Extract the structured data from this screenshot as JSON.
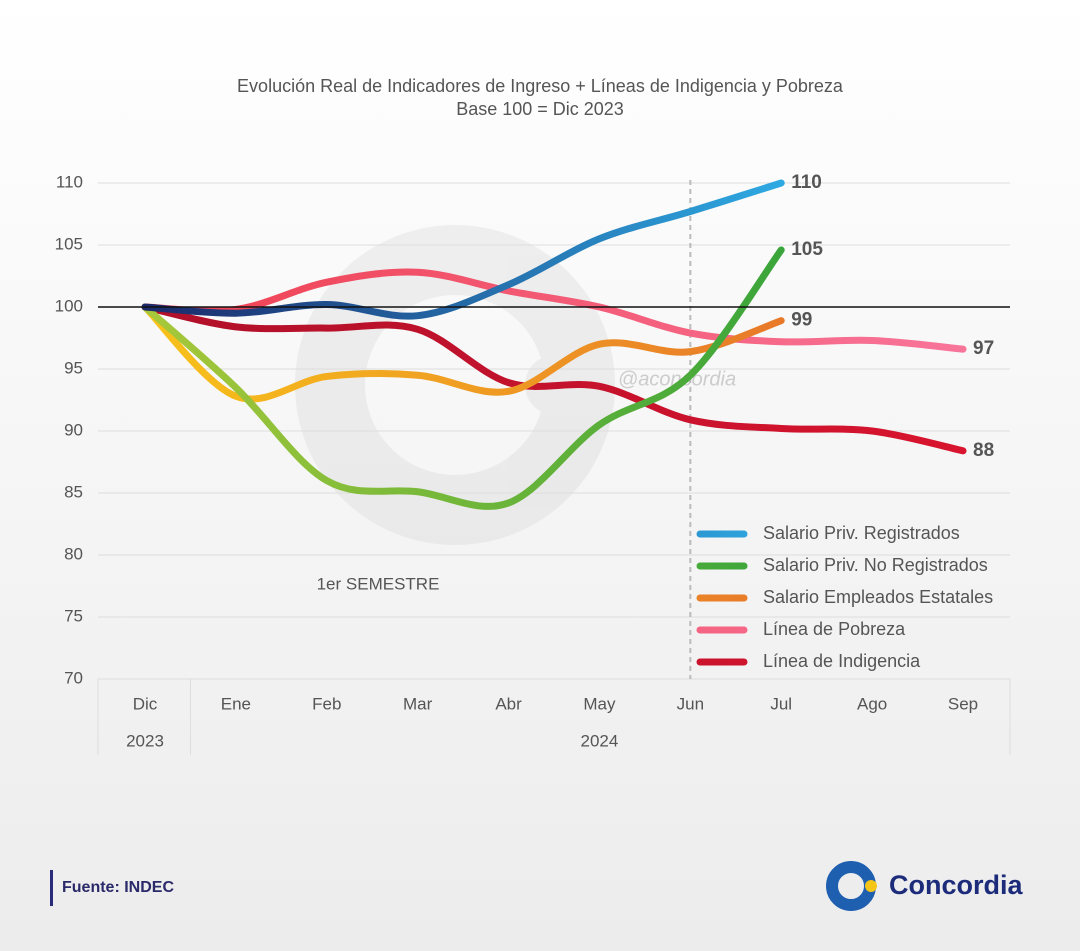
{
  "chart_data": {
    "type": "line",
    "title": "Evolución Real de Indicadores de Ingreso + Líneas de Indigencia y Pobreza",
    "subtitle": "Base 100 = Dic 2023",
    "categories": [
      "Dic",
      "Ene",
      "Feb",
      "Mar",
      "Abr",
      "May",
      "Jun",
      "Jul",
      "Ago",
      "Sep"
    ],
    "year_groups": [
      {
        "label": "2023",
        "from": 0,
        "to": 0
      },
      {
        "label": "2024",
        "from": 1,
        "to": 9
      }
    ],
    "series": [
      {
        "name": "Salario Priv. Registrados",
        "colors": [
          "#1b2a6b",
          "#2ea9e2"
        ],
        "values": [
          100,
          99.5,
          100.2,
          99.3,
          101.8,
          105.5,
          107.7,
          110,
          null,
          null
        ],
        "value_labels": [
          null,
          null,
          null,
          null,
          null,
          null,
          null,
          "110",
          null,
          null
        ]
      },
      {
        "name": "Salario Priv. No Registrados",
        "colors": [
          "#a8c83a",
          "#3aa53a"
        ],
        "values": [
          100,
          93.5,
          86,
          85.1,
          84.2,
          90.5,
          94.5,
          104.6,
          null,
          null
        ],
        "value_labels": [
          null,
          null,
          null,
          null,
          null,
          null,
          null,
          "105",
          null,
          null
        ]
      },
      {
        "name": "Salario Empleados Estatales",
        "colors": [
          "#f7c21a",
          "#e8792a"
        ],
        "values": [
          100,
          92.8,
          94.4,
          94.5,
          93.2,
          97,
          96.4,
          98.9,
          null,
          null
        ],
        "value_labels": [
          null,
          null,
          null,
          null,
          null,
          null,
          null,
          "99",
          null,
          null
        ]
      },
      {
        "name": "Línea de Pobreza",
        "colors": [
          "#ee4050",
          "#f8759a"
        ],
        "values": [
          100,
          99.8,
          102,
          102.8,
          101.3,
          100,
          97.9,
          97.2,
          97.3,
          96.6
        ],
        "value_labels": [
          null,
          null,
          null,
          null,
          null,
          null,
          null,
          null,
          null,
          "97"
        ]
      },
      {
        "name": "Línea de Indigencia",
        "colors": [
          "#b0102a",
          "#d8142e"
        ],
        "values": [
          100,
          98.4,
          98.3,
          98.2,
          93.9,
          93.6,
          90.9,
          90.2,
          90,
          88.4
        ],
        "value_labels": [
          null,
          null,
          null,
          null,
          null,
          null,
          null,
          null,
          null,
          "88"
        ]
      }
    ],
    "ylim": [
      70,
      110
    ],
    "yticks": [
      70,
      75,
      80,
      85,
      90,
      95,
      100,
      105,
      110
    ],
    "grid": true,
    "reference_line": 100,
    "divider_index": 6,
    "annotation": "1er SEMESTRE",
    "watermark": "@aconcordia",
    "legend": "lower right"
  },
  "footer": {
    "source": "Fuente: INDEC",
    "logo": "Concordia"
  }
}
